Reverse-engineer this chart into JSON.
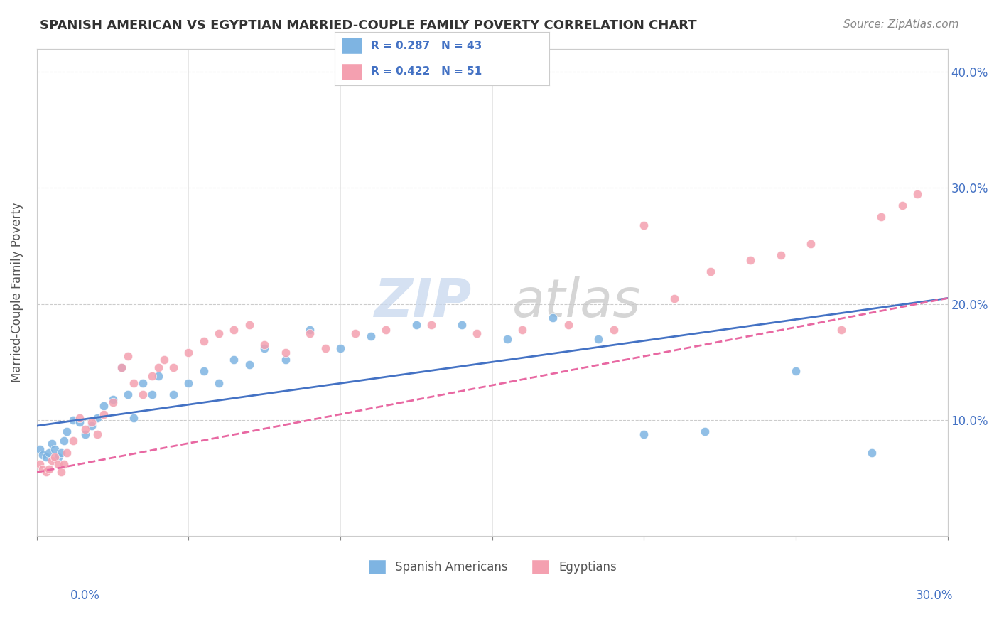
{
  "title": "SPANISH AMERICAN VS EGYPTIAN MARRIED-COUPLE FAMILY POVERTY CORRELATION CHART",
  "source": "Source: ZipAtlas.com",
  "ylabel": "Married-Couple Family Poverty",
  "xlim": [
    0,
    0.3
  ],
  "ylim": [
    0,
    0.42
  ],
  "legend_r_blue": "R = 0.287",
  "legend_n_blue": "N = 43",
  "legend_r_pink": "R = 0.422",
  "legend_n_pink": "N = 51",
  "blue_color": "#7eb4e2",
  "pink_color": "#f4a0b0",
  "blue_line_color": "#4472c4",
  "pink_line_color": "#e868a2",
  "spanish_x": [
    0.001,
    0.002,
    0.003,
    0.004,
    0.005,
    0.006,
    0.007,
    0.008,
    0.009,
    0.01,
    0.012,
    0.014,
    0.016,
    0.018,
    0.02,
    0.022,
    0.025,
    0.028,
    0.03,
    0.032,
    0.035,
    0.038,
    0.04,
    0.045,
    0.05,
    0.055,
    0.06,
    0.065,
    0.07,
    0.075,
    0.082,
    0.09,
    0.1,
    0.11,
    0.125,
    0.14,
    0.155,
    0.17,
    0.185,
    0.2,
    0.22,
    0.25,
    0.275
  ],
  "spanish_y": [
    0.075,
    0.07,
    0.068,
    0.072,
    0.08,
    0.075,
    0.068,
    0.072,
    0.082,
    0.09,
    0.1,
    0.098,
    0.088,
    0.095,
    0.102,
    0.112,
    0.118,
    0.145,
    0.122,
    0.102,
    0.132,
    0.122,
    0.138,
    0.122,
    0.132,
    0.142,
    0.132,
    0.152,
    0.148,
    0.162,
    0.152,
    0.178,
    0.162,
    0.172,
    0.182,
    0.182,
    0.17,
    0.188,
    0.17,
    0.088,
    0.09,
    0.142,
    0.072
  ],
  "egyptian_x": [
    0.001,
    0.002,
    0.003,
    0.004,
    0.005,
    0.006,
    0.007,
    0.008,
    0.009,
    0.01,
    0.012,
    0.014,
    0.016,
    0.018,
    0.02,
    0.022,
    0.025,
    0.028,
    0.03,
    0.032,
    0.035,
    0.038,
    0.04,
    0.042,
    0.045,
    0.05,
    0.055,
    0.06,
    0.065,
    0.07,
    0.075,
    0.082,
    0.09,
    0.095,
    0.105,
    0.115,
    0.13,
    0.145,
    0.16,
    0.175,
    0.19,
    0.2,
    0.21,
    0.222,
    0.235,
    0.245,
    0.255,
    0.265,
    0.278,
    0.285,
    0.29
  ],
  "egyptian_y": [
    0.062,
    0.058,
    0.055,
    0.058,
    0.065,
    0.068,
    0.062,
    0.055,
    0.062,
    0.072,
    0.082,
    0.102,
    0.092,
    0.098,
    0.088,
    0.105,
    0.115,
    0.145,
    0.155,
    0.132,
    0.122,
    0.138,
    0.145,
    0.152,
    0.145,
    0.158,
    0.168,
    0.175,
    0.178,
    0.182,
    0.165,
    0.158,
    0.175,
    0.162,
    0.175,
    0.178,
    0.182,
    0.175,
    0.178,
    0.182,
    0.178,
    0.268,
    0.205,
    0.228,
    0.238,
    0.242,
    0.252,
    0.178,
    0.275,
    0.285,
    0.295
  ],
  "blue_line_x": [
    0.0,
    0.3
  ],
  "blue_line_y": [
    0.095,
    0.205
  ],
  "pink_line_x": [
    0.0,
    0.3
  ],
  "pink_line_y": [
    0.055,
    0.205
  ],
  "yticks": [
    0.0,
    0.1,
    0.2,
    0.3,
    0.4
  ],
  "ytick_labels": [
    "",
    "10.0%",
    "20.0%",
    "30.0%",
    "40.0%"
  ],
  "xticks": [
    0.0,
    0.05,
    0.1,
    0.15,
    0.2,
    0.25,
    0.3
  ]
}
